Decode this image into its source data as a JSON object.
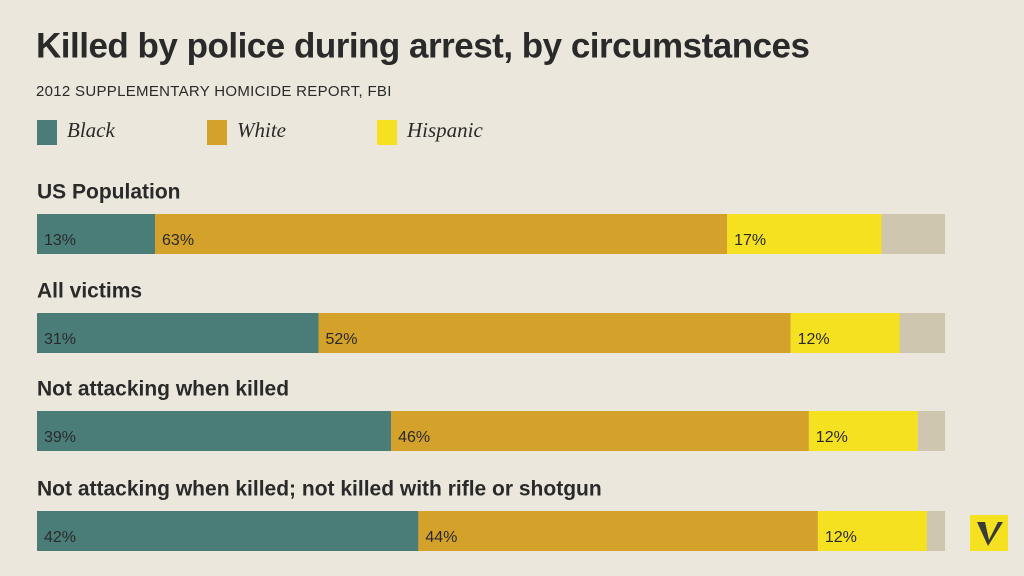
{
  "chart_data": {
    "type": "stacked-bar",
    "title": "Killed by police during arrest, by circumstances",
    "subtitle": "2012 SUPPLEMENTARY HOMICIDE REPORT, FBI",
    "categories": [
      "US Population",
      "All victims",
      "Not attacking when killed",
      "Not attacking when killed; not killed with rifle or shotgun"
    ],
    "series": [
      {
        "name": "Black",
        "color": "#4a7d78",
        "values": [
          13,
          31,
          39,
          42
        ],
        "value_labels": [
          "13%",
          "31%",
          "39%",
          "42%"
        ]
      },
      {
        "name": "White",
        "color": "#d4a12a",
        "values": [
          63,
          52,
          46,
          44
        ],
        "value_labels": [
          "63%",
          "52%",
          "46%",
          "44%"
        ]
      },
      {
        "name": "Hispanic",
        "color": "#f5e11f",
        "values": [
          17,
          12,
          12,
          12
        ],
        "value_labels": [
          "17%",
          "12%",
          "12%",
          "12%"
        ]
      }
    ],
    "xlim": [
      0,
      100
    ]
  }
}
